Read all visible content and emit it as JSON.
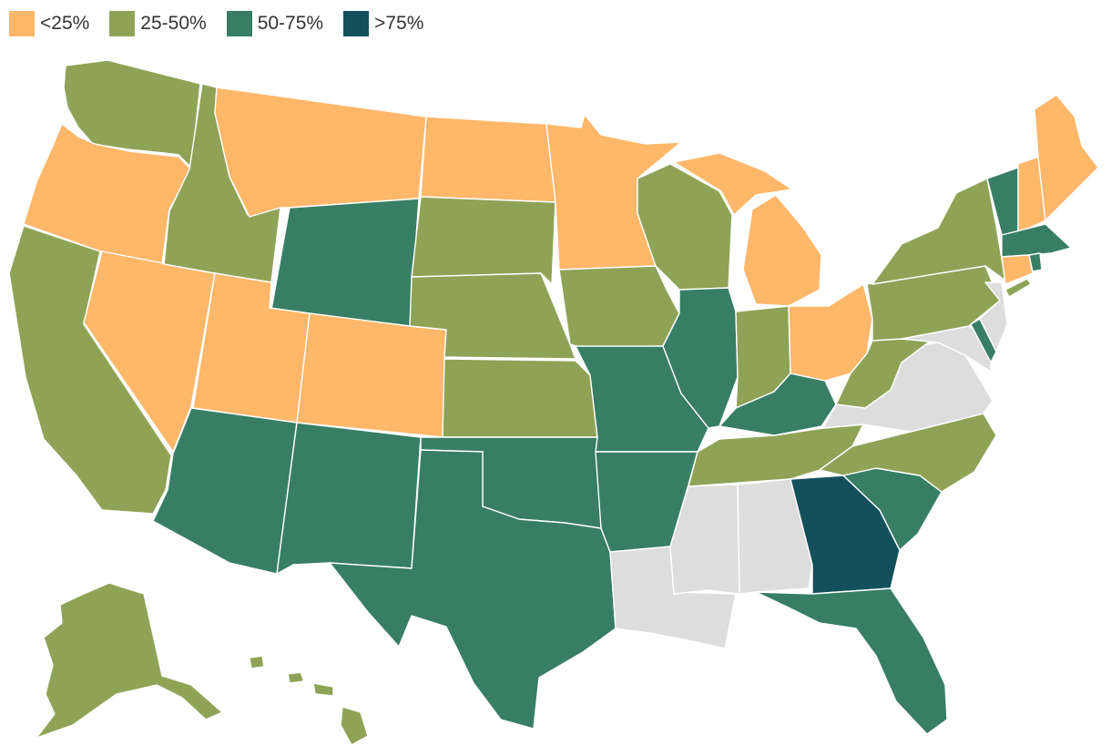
{
  "legend": [
    {
      "label": "<25%",
      "color": "#FFB76A"
    },
    {
      "label": "25-50%",
      "color": "#8FA357"
    },
    {
      "label": "50-75%",
      "color": "#377E65"
    },
    {
      "label": ">75%",
      "color": "#13505B"
    }
  ],
  "no_data_color": "#DDDDDD",
  "states": {
    "WA": "25-50%",
    "OR": "<25%",
    "CA": "25-50%",
    "NV": "<25%",
    "ID": "25-50%",
    "MT": "<25%",
    "WY": "50-75%",
    "UT": "<25%",
    "CO": "<25%",
    "AZ": "50-75%",
    "NM": "50-75%",
    "ND": "<25%",
    "SD": "25-50%",
    "NE": "25-50%",
    "KS": "25-50%",
    "OK": "50-75%",
    "TX": "50-75%",
    "MN": "<25%",
    "IA": "25-50%",
    "MO": "50-75%",
    "AR": "50-75%",
    "LA": "none",
    "WI": "25-50%",
    "IL": "50-75%",
    "MI": "<25%",
    "IN": "25-50%",
    "OH": "<25%",
    "KY": "50-75%",
    "TN": "25-50%",
    "MS": "none",
    "AL": "none",
    "GA": ">75%",
    "FL": "50-75%",
    "SC": "50-75%",
    "NC": "25-50%",
    "VA": "none",
    "WV": "25-50%",
    "PA": "25-50%",
    "NY": "25-50%",
    "VT": "50-75%",
    "NH": "<25%",
    "ME": "<25%",
    "MA": "50-75%",
    "RI": "50-75%",
    "CT": "<25%",
    "NJ": "none",
    "DE": "50-75%",
    "MD": "none",
    "AK": "25-50%",
    "HI": "25-50%"
  }
}
